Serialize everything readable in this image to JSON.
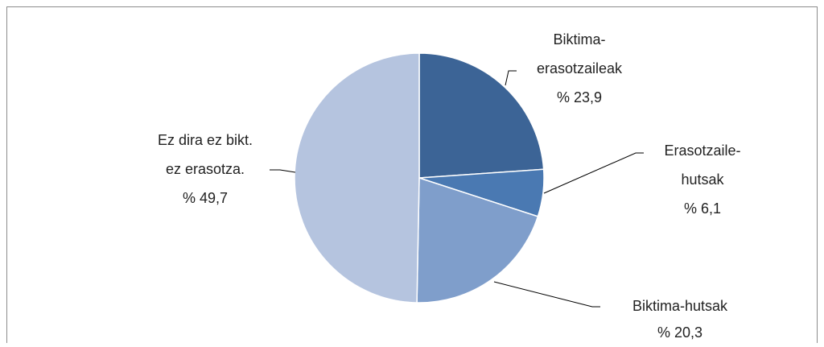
{
  "chart_data": {
    "type": "pie",
    "categories": [
      [
        "Biktima-",
        "erasotzaileak"
      ],
      [
        "Erasotzaile-",
        "hutsak"
      ],
      [
        "Biktima-hutsak"
      ],
      [
        "Ez dira ez bikt.",
        "ez erasotza."
      ]
    ],
    "values": [
      23.9,
      6.1,
      20.3,
      49.7
    ],
    "value_labels": [
      "% 23,9",
      "% 6,1",
      "% 20,3",
      "% 49,7"
    ],
    "colors": [
      "#3c6496",
      "#4a79b2",
      "#7f9ecb",
      "#b5c4df"
    ]
  }
}
